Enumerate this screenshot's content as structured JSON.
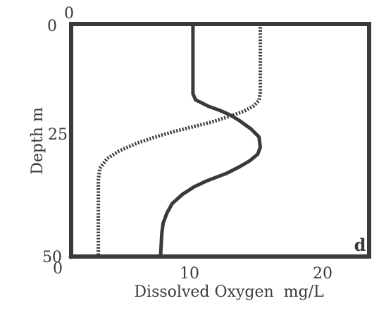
{
  "chart_data": {
    "type": "line",
    "title": "",
    "xlabel": "Dissolved Oxygen  mg/L",
    "ylabel": "Depth m",
    "panel_label": "d",
    "xlim": [
      0,
      23
    ],
    "ylim": [
      0,
      50
    ],
    "y_inverted": true,
    "grid": false,
    "legend": "none",
    "x_ticks": [
      "0",
      "10",
      "20"
    ],
    "x_tick_values": [
      0,
      10,
      20
    ],
    "y_ticks": [
      "0",
      "25",
      "50"
    ],
    "y_tick_values": [
      0,
      25,
      50
    ],
    "corner_top_label": "0",
    "series": [
      {
        "style": "solid",
        "color": "#3a3a3a",
        "points": [
          [
            9.4,
            0
          ],
          [
            9.4,
            15
          ],
          [
            9.6,
            16.3
          ],
          [
            10.6,
            17.7
          ],
          [
            11.5,
            18.6
          ],
          [
            12.3,
            19.6
          ],
          [
            13,
            20.8
          ],
          [
            13.9,
            22.6
          ],
          [
            14.5,
            24.3
          ],
          [
            14.6,
            26.5
          ],
          [
            14.4,
            28
          ],
          [
            13.8,
            29.4
          ],
          [
            13,
            30.7
          ],
          [
            12,
            32.1
          ],
          [
            10.5,
            33.7
          ],
          [
            9.5,
            35
          ],
          [
            8.6,
            36.6
          ],
          [
            7.8,
            38.6
          ],
          [
            7.4,
            40.6
          ],
          [
            7.1,
            42.8
          ],
          [
            7,
            45
          ],
          [
            6.9,
            50
          ]
        ]
      },
      {
        "style": "dotted",
        "color": "#3a3a3a",
        "points": [
          [
            14.6,
            0
          ],
          [
            14.6,
            14.7
          ],
          [
            14.5,
            16.4
          ],
          [
            14.1,
            17.6
          ],
          [
            13.3,
            18.8
          ],
          [
            12.2,
            19.9
          ],
          [
            10.7,
            21.2
          ],
          [
            9.1,
            22.3
          ],
          [
            7.7,
            23.3
          ],
          [
            6.4,
            24.4
          ],
          [
            5.1,
            25.6
          ],
          [
            3.7,
            27.3
          ],
          [
            2.8,
            28.9
          ],
          [
            2.2,
            31.1
          ],
          [
            2.1,
            33.6
          ],
          [
            2.1,
            50
          ]
        ]
      }
    ]
  }
}
